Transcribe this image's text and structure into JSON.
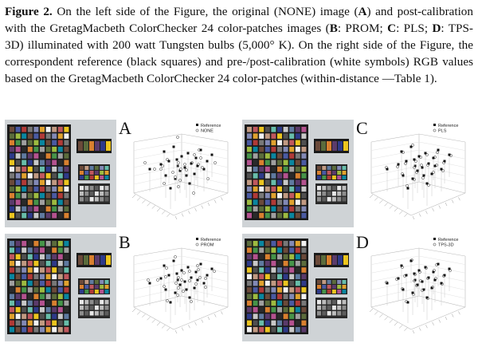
{
  "caption": {
    "figure_label": "Figure 2.",
    "line1_rest": " On the left side of the Figure, the original (NONE) image (",
    "A": "A",
    "line1_tail": ") and post-calibration",
    "line2": "with the GretagMacbeth ColorChecker 24 color-patches images (",
    "B": "B",
    "line2_b": ": PROM; ",
    "C": "C",
    "line2_c": ": PLS;",
    "D": "D",
    "line3": ": TPS-3D) illuminated with 200 watt Tungsten bulbs (5,000° K). On the right side of the",
    "line4": "Figure, the correspondent reference (black squares) and pre-/post-calibration (white symbols)",
    "line5": "RGB values based on the GretagMacbeth ColorChecker 24 color-patches (within-distance",
    "line6": "—Table 1)."
  },
  "panels": [
    {
      "letter": "A",
      "legend_ref": "Reference",
      "legend_cmp": "NONE"
    },
    {
      "letter": "B",
      "legend_ref": "Reference",
      "legend_cmp": "PROM"
    },
    {
      "letter": "C",
      "legend_ref": "Reference",
      "legend_cmp": "PLS"
    },
    {
      "letter": "D",
      "legend_ref": "Reference",
      "legend_cmp": "TPS-3D"
    }
  ],
  "colors": {
    "background_wall": "#cfd3d6",
    "chart_board": "#1a1a1a",
    "reference_marker": "#111111",
    "comparison_marker": "#ffffff"
  }
}
